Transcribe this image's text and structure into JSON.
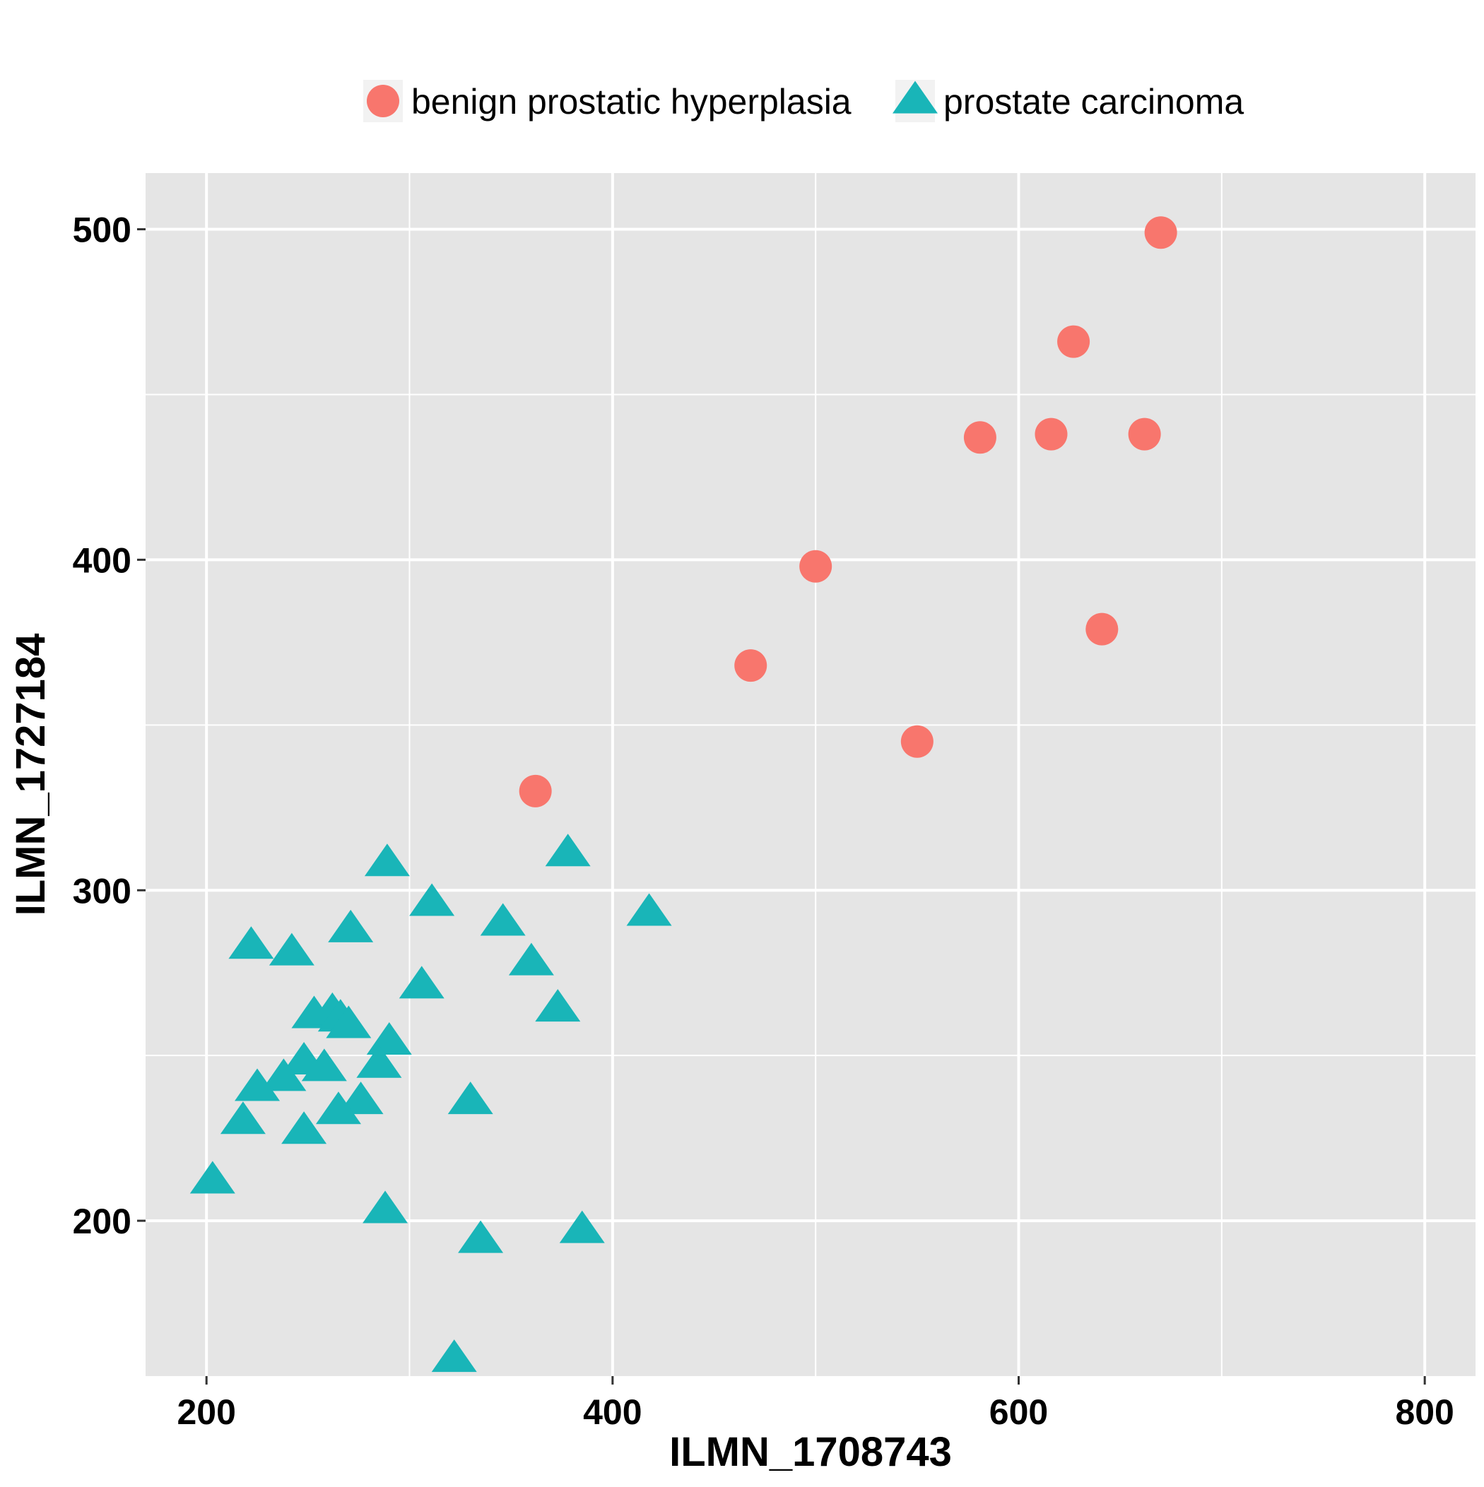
{
  "chart_data": {
    "type": "scatter",
    "xlabel": "ILMN_1708743",
    "ylabel": "ILMN_1727184",
    "xlim": [
      170,
      825
    ],
    "ylim": [
      153,
      517
    ],
    "x_ticks": [
      200,
      400,
      600,
      800
    ],
    "y_ticks": [
      200,
      300,
      400,
      500
    ],
    "x_tick_labels": [
      "200",
      "400",
      "600",
      "800"
    ],
    "y_tick_labels": [
      "200",
      "300",
      "400",
      "500"
    ],
    "x_minor_ticks": [
      300,
      500,
      700
    ],
    "y_minor_ticks": [
      150,
      250,
      350,
      450
    ],
    "grid": true,
    "legend_position": "top",
    "colors": {
      "panel_background": "#e5e5e5",
      "grid": "#ffffff",
      "benign": "#f8766d",
      "carcinoma": "#19b5b8"
    },
    "series": [
      {
        "name": "benign prostatic hyperplasia",
        "marker": "circle",
        "color": "#f8766d",
        "points": [
          {
            "x": 670,
            "y": 499
          },
          {
            "x": 627,
            "y": 466
          },
          {
            "x": 581,
            "y": 437
          },
          {
            "x": 616,
            "y": 438
          },
          {
            "x": 662,
            "y": 438
          },
          {
            "x": 500,
            "y": 398
          },
          {
            "x": 641,
            "y": 379
          },
          {
            "x": 468,
            "y": 368
          },
          {
            "x": 550,
            "y": 345
          },
          {
            "x": 362,
            "y": 330
          }
        ]
      },
      {
        "name": "prostate carcinoma",
        "marker": "triangle",
        "color": "#19b5b8",
        "points": [
          {
            "x": 289,
            "y": 308
          },
          {
            "x": 378,
            "y": 311
          },
          {
            "x": 311,
            "y": 296
          },
          {
            "x": 418,
            "y": 293
          },
          {
            "x": 346,
            "y": 290
          },
          {
            "x": 271,
            "y": 288
          },
          {
            "x": 222,
            "y": 283
          },
          {
            "x": 242,
            "y": 281
          },
          {
            "x": 360,
            "y": 278
          },
          {
            "x": 306,
            "y": 271
          },
          {
            "x": 373,
            "y": 264
          },
          {
            "x": 253,
            "y": 262
          },
          {
            "x": 262,
            "y": 263
          },
          {
            "x": 266,
            "y": 261
          },
          {
            "x": 270,
            "y": 259
          },
          {
            "x": 290,
            "y": 254
          },
          {
            "x": 285,
            "y": 247
          },
          {
            "x": 248,
            "y": 248
          },
          {
            "x": 258,
            "y": 246
          },
          {
            "x": 238,
            "y": 243
          },
          {
            "x": 225,
            "y": 240
          },
          {
            "x": 276,
            "y": 236
          },
          {
            "x": 330,
            "y": 236
          },
          {
            "x": 265,
            "y": 233
          },
          {
            "x": 218,
            "y": 230
          },
          {
            "x": 248,
            "y": 227
          },
          {
            "x": 203,
            "y": 212
          },
          {
            "x": 288,
            "y": 203
          },
          {
            "x": 335,
            "y": 194
          },
          {
            "x": 385,
            "y": 197
          },
          {
            "x": 322,
            "y": 158
          }
        ]
      }
    ]
  }
}
